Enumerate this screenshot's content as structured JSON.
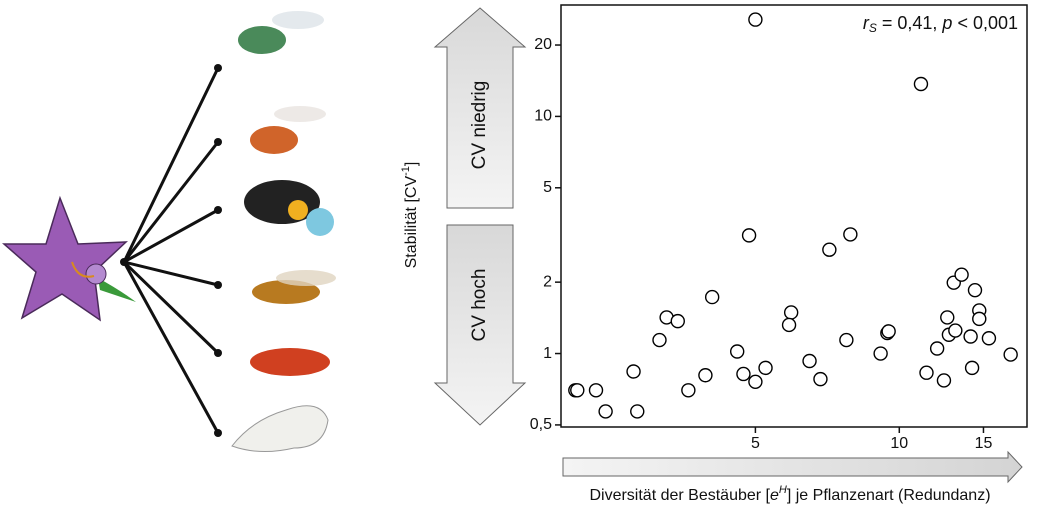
{
  "chart_data": {
    "type": "scatter",
    "annotation": [
      "r",
      "S",
      " = 0,41, ",
      "p",
      " < 0,001"
    ],
    "y_label": [
      "Stabilität [CV",
      "-1",
      "]"
    ],
    "x_label": [
      "Diversität der Bestäuber [",
      "e",
      "H",
      "] je Pflanzenart (Redundanz)"
    ],
    "arrow_labels": [
      "CV niedrig",
      "CV hoch"
    ],
    "x_log": true,
    "y_log": true,
    "xlim": [
      1.96,
      18.5
    ],
    "ylim": [
      0.49,
      29.5
    ],
    "xticks": [
      5,
      10,
      15
    ],
    "yticks": [
      {
        "value": 0.5,
        "label": "0,5"
      },
      1,
      2,
      5,
      10,
      20
    ],
    "marker_color": "#000000",
    "x": [
      2.1,
      2.12,
      2.32,
      2.43,
      2.78,
      2.83,
      3.15,
      3.26,
      3.44,
      3.62,
      3.93,
      4.06,
      4.58,
      4.72,
      4.85,
      5.0,
      5.0,
      5.25,
      5.94,
      5.88,
      6.49,
      6.84,
      7.14,
      7.75,
      7.9,
      9.14,
      9.44,
      9.5,
      11.1,
      11.4,
      12.0,
      12.4,
      12.6,
      12.7,
      13.0,
      13.1,
      13.5,
      14.1,
      14.2,
      14.4,
      14.7,
      14.7,
      15.4,
      17.1
    ],
    "y": [
      0.7,
      0.7,
      0.7,
      0.57,
      0.84,
      0.57,
      1.14,
      1.42,
      1.37,
      0.7,
      0.81,
      1.73,
      1.02,
      0.82,
      3.15,
      0.76,
      25.6,
      0.87,
      1.49,
      1.32,
      0.93,
      0.78,
      2.74,
      1.14,
      3.18,
      1.0,
      1.22,
      1.24,
      13.7,
      0.83,
      1.05,
      0.77,
      1.42,
      1.2,
      1.99,
      1.25,
      2.15,
      1.18,
      0.87,
      1.85,
      1.52,
      1.4,
      1.16,
      0.99
    ]
  }
}
